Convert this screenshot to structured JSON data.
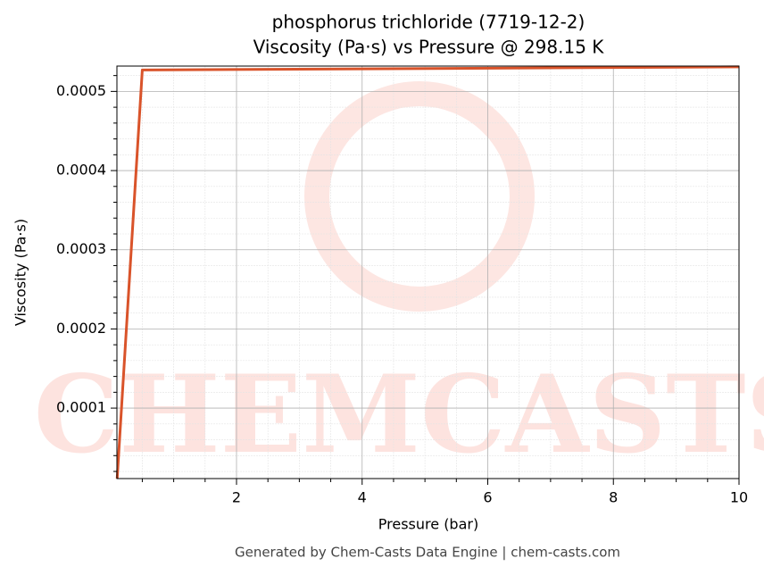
{
  "chart_data": {
    "type": "line",
    "title": "phosphorus trichloride (7719-12-2)",
    "subtitle": "Viscosity (Pa·s) vs Pressure @ 298.15 K",
    "x_label": "Pressure (bar)",
    "y_label": "Viscosity (Pa·s)",
    "footer": "Generated by Chem-Casts Data Engine | chem-casts.com",
    "watermark": "CHEMCASTS",
    "x": [
      0.1,
      0.5,
      10
    ],
    "series": [
      {
        "color": "#d9532a",
        "values": [
          1.1e-05,
          0.000527,
          0.000531
        ]
      }
    ],
    "xlim": [
      0.096,
      10
    ],
    "ylim": [
      1.1e-05,
      0.000532
    ],
    "xticks": [
      2,
      4,
      6,
      8,
      10
    ],
    "yticks": [
      0.0001,
      0.0002,
      0.0003,
      0.0004,
      0.0005
    ],
    "xminorticks": [
      0.5,
      1,
      1.5,
      2.5,
      3,
      3.5,
      4.5,
      5,
      5.5,
      6.5,
      7,
      7.5,
      8.5,
      9,
      9.5
    ],
    "yminorticks": [
      2e-05,
      4e-05,
      6e-05,
      8e-05,
      0.00012,
      0.00014,
      0.00016,
      0.00018,
      0.00022,
      0.00024,
      0.00026,
      0.00028,
      0.00032,
      0.00034,
      0.00036,
      0.00038,
      0.00042,
      0.00044,
      0.00046,
      0.00048,
      0.00052
    ],
    "grid": true
  }
}
